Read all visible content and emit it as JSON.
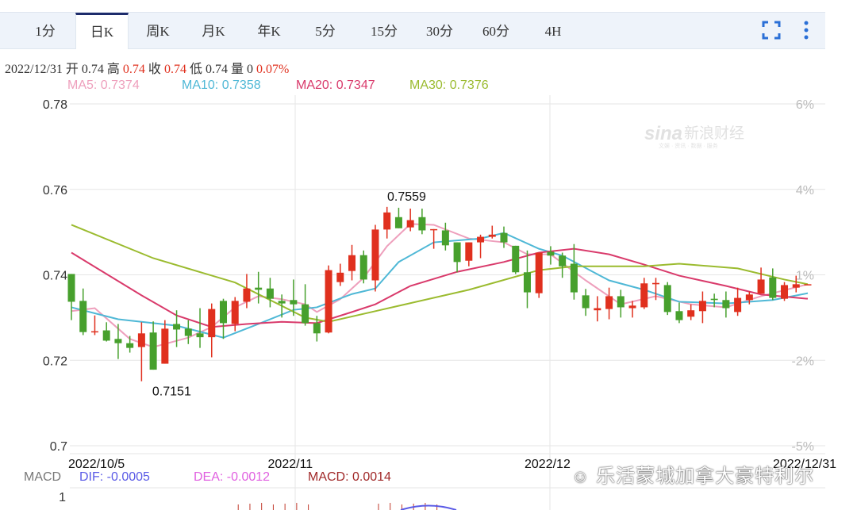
{
  "tabs": [
    {
      "label": "1分"
    },
    {
      "label": "日K",
      "active": true
    },
    {
      "label": "周K"
    },
    {
      "label": "月K"
    },
    {
      "label": "年K"
    },
    {
      "label": "5分"
    },
    {
      "label": "15分"
    },
    {
      "label": "30分"
    },
    {
      "label": "60分"
    },
    {
      "label": "4H"
    }
  ],
  "toolbar": {
    "fullscreen_icon": "fullscreen-icon",
    "more_icon": "more-vertical-icon"
  },
  "info": {
    "date": "2022/12/31",
    "open_label": "开",
    "open": "0.74",
    "high_label": "高",
    "high": "0.74",
    "close_label": "收",
    "close": "0.74",
    "low_label": "低",
    "low": "0.74",
    "volume_label": "量",
    "volume": "0",
    "change": "0.07%"
  },
  "ma_legend": [
    {
      "text": "MA5: 0.7374",
      "color": "#ee9fbc"
    },
    {
      "text": "MA10: 0.7358",
      "color": "#4fb8d6"
    },
    {
      "text": "MA20: 0.7347",
      "color": "#d93a6b"
    },
    {
      "text": "MA30: 0.7376",
      "color": "#9bbb2f"
    }
  ],
  "macd_legend": {
    "label": "MACD",
    "dif": "DIF: -0.0005",
    "dea": "DEA: -0.0012",
    "macd": "MACD: 0.0014",
    "dif_color": "#5a5ae6",
    "dea_color": "#e060e0",
    "macd_color": "#a02828"
  },
  "watermark": {
    "sina": "sina新浪财经",
    "sina_sub": "文娱 · 资讯 · 数据 · 服务",
    "wechat": "乐活蒙城加拿大豪特利尔"
  },
  "colors": {
    "up": "#e0301e",
    "down": "#47a02d"
  },
  "chart_data": {
    "type": "candlestick",
    "ylim": [
      0.7,
      0.78
    ],
    "y_ticks": [
      "0.78",
      "0.76",
      "0.74",
      "0.72",
      "0.7"
    ],
    "y_tick_values": [
      0.78,
      0.76,
      0.74,
      0.72,
      0.7
    ],
    "right_ticks": [
      "6%",
      "4%",
      "1%",
      "-2%",
      "-5%"
    ],
    "x_labels": [
      {
        "text": "2022/10/5",
        "index": 0
      },
      {
        "text": "2022/11",
        "index": 19
      },
      {
        "text": "2022/12",
        "index": 41
      },
      {
        "text": "2022/12/31",
        "index": 63
      }
    ],
    "annotations": [
      {
        "text": "0.7559",
        "index": 28,
        "value": 0.7559
      },
      {
        "text": "0.7151",
        "index": 6,
        "value": 0.7151
      }
    ],
    "grid": true,
    "ohlc": [
      [
        0.7402,
        0.7402,
        0.7294,
        0.7337
      ],
      [
        0.7339,
        0.7368,
        0.7259,
        0.7266
      ],
      [
        0.7266,
        0.7305,
        0.7259,
        0.7268
      ],
      [
        0.727,
        0.7289,
        0.7244,
        0.7246
      ],
      [
        0.725,
        0.7285,
        0.7203,
        0.724
      ],
      [
        0.724,
        0.7257,
        0.7218,
        0.7229
      ],
      [
        0.7231,
        0.7289,
        0.7151,
        0.7263
      ],
      [
        0.7265,
        0.7291,
        0.7178,
        0.7178
      ],
      [
        0.7192,
        0.7294,
        0.7192,
        0.7274
      ],
      [
        0.7285,
        0.7317,
        0.7231,
        0.7272
      ],
      [
        0.7274,
        0.7294,
        0.7238,
        0.7257
      ],
      [
        0.7263,
        0.7322,
        0.7229,
        0.7254
      ],
      [
        0.7254,
        0.7333,
        0.7207,
        0.732
      ],
      [
        0.7339,
        0.7344,
        0.725,
        0.7287
      ],
      [
        0.7285,
        0.7348,
        0.7268,
        0.7339
      ],
      [
        0.7337,
        0.7402,
        0.7322,
        0.7368
      ],
      [
        0.737,
        0.7407,
        0.7333,
        0.7365
      ],
      [
        0.7368,
        0.7393,
        0.7324,
        0.7344
      ],
      [
        0.7339,
        0.7354,
        0.73,
        0.7333
      ],
      [
        0.7341,
        0.7389,
        0.7304,
        0.7331
      ],
      [
        0.7331,
        0.7378,
        0.7281,
        0.7287
      ],
      [
        0.7287,
        0.7304,
        0.7244,
        0.7263
      ],
      [
        0.7265,
        0.7422,
        0.7263,
        0.7411
      ],
      [
        0.7383,
        0.7426,
        0.7374,
        0.7405
      ],
      [
        0.7409,
        0.747,
        0.7387,
        0.7446
      ],
      [
        0.7446,
        0.7457,
        0.738,
        0.7389
      ],
      [
        0.7387,
        0.7517,
        0.7361,
        0.7506
      ],
      [
        0.7506,
        0.7559,
        0.7485,
        0.7546
      ],
      [
        0.7535,
        0.7557,
        0.7509,
        0.7509
      ],
      [
        0.7511,
        0.7555,
        0.7502,
        0.7528
      ],
      [
        0.7535,
        0.7555,
        0.7495,
        0.7504
      ],
      [
        0.7505,
        0.7507,
        0.7461,
        0.7507
      ],
      [
        0.7504,
        0.7522,
        0.7457,
        0.7469
      ],
      [
        0.7476,
        0.7476,
        0.7406,
        0.743
      ],
      [
        0.7433,
        0.7476,
        0.742,
        0.7476
      ],
      [
        0.7476,
        0.7494,
        0.7439,
        0.7489
      ],
      [
        0.7489,
        0.7515,
        0.7485,
        0.7494
      ],
      [
        0.7498,
        0.7513,
        0.7463,
        0.7476
      ],
      [
        0.7468,
        0.7468,
        0.7402,
        0.7406
      ],
      [
        0.7406,
        0.7457,
        0.7322,
        0.7359
      ],
      [
        0.7357,
        0.7452,
        0.7346,
        0.7452
      ],
      [
        0.7454,
        0.7467,
        0.7424,
        0.7445
      ],
      [
        0.7445,
        0.7452,
        0.7393,
        0.742
      ],
      [
        0.7426,
        0.7472,
        0.7342,
        0.7359
      ],
      [
        0.7352,
        0.7367,
        0.7304,
        0.7322
      ],
      [
        0.7317,
        0.735,
        0.7291,
        0.7322
      ],
      [
        0.732,
        0.737,
        0.7296,
        0.735
      ],
      [
        0.735,
        0.7365,
        0.73,
        0.7324
      ],
      [
        0.7322,
        0.7339,
        0.73,
        0.7328
      ],
      [
        0.7324,
        0.7393,
        0.732,
        0.738
      ],
      [
        0.7378,
        0.7393,
        0.7341,
        0.7381
      ],
      [
        0.7376,
        0.7383,
        0.7306,
        0.7313
      ],
      [
        0.7315,
        0.7335,
        0.7287,
        0.7294
      ],
      [
        0.7302,
        0.7331,
        0.7294,
        0.7317
      ],
      [
        0.7315,
        0.7361,
        0.7287,
        0.7339
      ],
      [
        0.7344,
        0.7356,
        0.7324,
        0.7341
      ],
      [
        0.7341,
        0.7361,
        0.73,
        0.7322
      ],
      [
        0.7313,
        0.737,
        0.7304,
        0.7346
      ],
      [
        0.7341,
        0.7361,
        0.7331,
        0.7354
      ],
      [
        0.7356,
        0.7417,
        0.7356,
        0.7389
      ],
      [
        0.7394,
        0.7415,
        0.7341,
        0.7346
      ],
      [
        0.7344,
        0.7383,
        0.7339,
        0.7376
      ],
      [
        0.737,
        0.7398,
        0.7359,
        0.7378
      ],
      [
        0.7376,
        0.7378,
        0.7376,
        0.7378
      ]
    ],
    "ma": [
      {
        "name": "MA5",
        "color": "#ee9fbc",
        "points": [
          [
            0,
            0.7315
          ],
          [
            2,
            0.7322
          ],
          [
            5,
            0.725
          ],
          [
            7,
            0.7231
          ],
          [
            10,
            0.7253
          ],
          [
            12,
            0.7278
          ],
          [
            14,
            0.7324
          ],
          [
            16,
            0.735
          ],
          [
            18,
            0.7343
          ],
          [
            20,
            0.7331
          ],
          [
            21,
            0.7313
          ],
          [
            23,
            0.7343
          ],
          [
            25,
            0.7393
          ],
          [
            27,
            0.7467
          ],
          [
            29,
            0.7519
          ],
          [
            31,
            0.7517
          ],
          [
            34,
            0.7485
          ],
          [
            37,
            0.7476
          ],
          [
            39,
            0.7448
          ],
          [
            41,
            0.7448
          ],
          [
            44,
            0.7387
          ],
          [
            47,
            0.7331
          ],
          [
            50,
            0.735
          ],
          [
            53,
            0.7331
          ],
          [
            56,
            0.7324
          ],
          [
            59,
            0.735
          ],
          [
            63,
            0.7378
          ]
        ]
      },
      {
        "name": "MA10",
        "color": "#4fb8d6",
        "points": [
          [
            0,
            0.7324
          ],
          [
            4,
            0.7296
          ],
          [
            9,
            0.7281
          ],
          [
            13,
            0.7253
          ],
          [
            16,
            0.7285
          ],
          [
            19,
            0.7318
          ],
          [
            21,
            0.7324
          ],
          [
            24,
            0.7355
          ],
          [
            26,
            0.7368
          ],
          [
            28,
            0.743
          ],
          [
            31,
            0.7476
          ],
          [
            35,
            0.7485
          ],
          [
            37,
            0.7498
          ],
          [
            40,
            0.7461
          ],
          [
            42,
            0.7445
          ],
          [
            46,
            0.7387
          ],
          [
            49,
            0.7365
          ],
          [
            52,
            0.7337
          ],
          [
            56,
            0.7333
          ],
          [
            60,
            0.7341
          ],
          [
            63,
            0.7357
          ]
        ]
      },
      {
        "name": "MA20",
        "color": "#d93a6b",
        "points": [
          [
            0,
            0.7452
          ],
          [
            6,
            0.7352
          ],
          [
            9,
            0.7305
          ],
          [
            12,
            0.7278
          ],
          [
            15,
            0.7285
          ],
          [
            18,
            0.729
          ],
          [
            21,
            0.7287
          ],
          [
            24,
            0.7313
          ],
          [
            26,
            0.7331
          ],
          [
            29,
            0.7374
          ],
          [
            33,
            0.7407
          ],
          [
            37,
            0.743
          ],
          [
            40,
            0.7452
          ],
          [
            43,
            0.7461
          ],
          [
            46,
            0.7448
          ],
          [
            49,
            0.7424
          ],
          [
            52,
            0.7398
          ],
          [
            56,
            0.7374
          ],
          [
            59,
            0.7354
          ],
          [
            63,
            0.7344
          ]
        ]
      },
      {
        "name": "MA30",
        "color": "#9bbb2f",
        "points": [
          [
            0,
            0.7517
          ],
          [
            7,
            0.7439
          ],
          [
            14,
            0.7382
          ],
          [
            20,
            0.73
          ],
          [
            22,
            0.729
          ],
          [
            26,
            0.7315
          ],
          [
            34,
            0.7365
          ],
          [
            40,
            0.7411
          ],
          [
            43,
            0.742
          ],
          [
            49,
            0.742
          ],
          [
            52,
            0.7426
          ],
          [
            57,
            0.7415
          ],
          [
            61,
            0.7389
          ],
          [
            63,
            0.7378
          ]
        ]
      }
    ],
    "macd_panel": {
      "y_tick": "1"
    }
  }
}
